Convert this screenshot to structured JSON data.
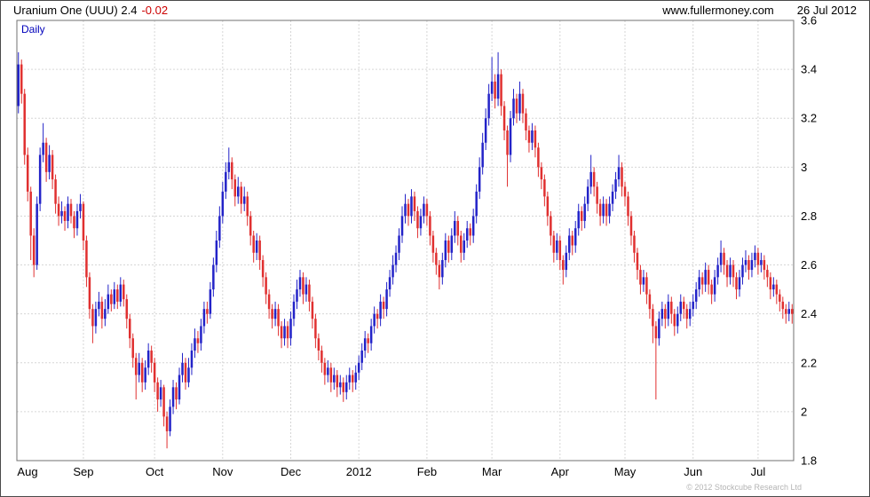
{
  "header": {
    "title": "Uranium One (UUU) 2.4",
    "change": "-0.02",
    "site": "www.fullermoney.com",
    "date": "26 Jul 2012"
  },
  "chart_label": "Daily",
  "footer": {
    "copyright": "© 2012 Stockcube Research Ltd"
  },
  "colors": {
    "up": "#2323c8",
    "down": "#e03030",
    "grid": "#d6d6d6",
    "frame": "#707070",
    "axis_text": "#000000",
    "change_text": "#cc0000",
    "daily_text": "#0000bb"
  },
  "chart_data": {
    "type": "candlestick",
    "title": "Uranium One (UUU) Daily",
    "last_price": 2.4,
    "change": -0.02,
    "ylim": [
      1.8,
      3.6
    ],
    "grid": true,
    "y_ticks": [
      {
        "label": "3.6",
        "v": 3.6
      },
      {
        "label": "3.4",
        "v": 3.4
      },
      {
        "label": "3.2",
        "v": 3.2
      },
      {
        "label": "3",
        "v": 3.0
      },
      {
        "label": "2.8",
        "v": 2.8
      },
      {
        "label": "2.6",
        "v": 2.6
      },
      {
        "label": "2.4",
        "v": 2.4
      },
      {
        "label": "2.2",
        "v": 2.2
      },
      {
        "label": "2",
        "v": 2.0
      },
      {
        "label": "1.8",
        "v": 1.8
      }
    ],
    "x_ticks": [
      {
        "label": "Aug",
        "i": 0
      },
      {
        "label": "Sep",
        "i": 21
      },
      {
        "label": "Oct",
        "i": 44
      },
      {
        "label": "Nov",
        "i": 66
      },
      {
        "label": "Dec",
        "i": 88
      },
      {
        "label": "2012",
        "i": 110
      },
      {
        "label": "Feb",
        "i": 132
      },
      {
        "label": "Mar",
        "i": 153
      },
      {
        "label": "Apr",
        "i": 175
      },
      {
        "label": "May",
        "i": 196
      },
      {
        "label": "Jun",
        "i": 218
      },
      {
        "label": "Jul",
        "i": 239
      }
    ],
    "ohlc": [
      [
        3.25,
        3.47,
        3.22,
        3.42
      ],
      [
        3.42,
        3.44,
        3.26,
        3.3
      ],
      [
        3.3,
        3.32,
        3.01,
        3.05
      ],
      [
        3.05,
        3.08,
        2.86,
        2.9
      ],
      [
        2.9,
        2.92,
        2.62,
        2.72
      ],
      [
        2.72,
        2.75,
        2.55,
        2.6
      ],
      [
        2.6,
        2.88,
        2.58,
        2.85
      ],
      [
        2.85,
        3.08,
        2.82,
        3.05
      ],
      [
        3.05,
        3.18,
        3.02,
        3.1
      ],
      [
        3.1,
        3.12,
        2.94,
        2.98
      ],
      [
        2.98,
        3.09,
        2.95,
        3.05
      ],
      [
        3.05,
        3.07,
        2.91,
        2.95
      ],
      [
        2.95,
        2.97,
        2.81,
        2.85
      ],
      [
        2.85,
        2.88,
        2.76,
        2.8
      ],
      [
        2.8,
        2.86,
        2.77,
        2.82
      ],
      [
        2.82,
        2.84,
        2.74,
        2.78
      ],
      [
        2.78,
        2.88,
        2.75,
        2.85
      ],
      [
        2.85,
        2.87,
        2.77,
        2.8
      ],
      [
        2.8,
        2.82,
        2.71,
        2.75
      ],
      [
        2.75,
        2.85,
        2.72,
        2.82
      ],
      [
        2.82,
        2.89,
        2.79,
        2.85
      ],
      [
        2.85,
        2.86,
        2.66,
        2.7
      ],
      [
        2.7,
        2.72,
        2.51,
        2.55
      ],
      [
        2.55,
        2.57,
        2.38,
        2.42
      ],
      [
        2.42,
        2.44,
        2.28,
        2.35
      ],
      [
        2.35,
        2.45,
        2.32,
        2.42
      ],
      [
        2.42,
        2.49,
        2.39,
        2.45
      ],
      [
        2.45,
        2.47,
        2.34,
        2.38
      ],
      [
        2.38,
        2.46,
        2.35,
        2.42
      ],
      [
        2.42,
        2.52,
        2.4,
        2.48
      ],
      [
        2.48,
        2.5,
        2.41,
        2.44
      ],
      [
        2.44,
        2.53,
        2.42,
        2.5
      ],
      [
        2.5,
        2.52,
        2.42,
        2.45
      ],
      [
        2.45,
        2.55,
        2.43,
        2.52
      ],
      [
        2.52,
        2.54,
        2.43,
        2.46
      ],
      [
        2.46,
        2.48,
        2.34,
        2.38
      ],
      [
        2.38,
        2.4,
        2.26,
        2.3
      ],
      [
        2.3,
        2.32,
        2.18,
        2.22
      ],
      [
        2.22,
        2.24,
        2.05,
        2.15
      ],
      [
        2.15,
        2.24,
        2.12,
        2.2
      ],
      [
        2.2,
        2.22,
        2.08,
        2.12
      ],
      [
        2.12,
        2.21,
        2.09,
        2.18
      ],
      [
        2.18,
        2.28,
        2.15,
        2.25
      ],
      [
        2.25,
        2.27,
        2.16,
        2.2
      ],
      [
        2.2,
        2.22,
        2.08,
        2.12
      ],
      [
        2.12,
        2.14,
        2.0,
        2.05
      ],
      [
        2.05,
        2.13,
        2.02,
        2.1
      ],
      [
        2.1,
        2.11,
        1.94,
        1.98
      ],
      [
        1.98,
        2.0,
        1.85,
        1.92
      ],
      [
        1.92,
        2.05,
        1.9,
        2.02
      ],
      [
        2.02,
        2.13,
        1.99,
        2.1
      ],
      [
        2.1,
        2.12,
        2.01,
        2.05
      ],
      [
        2.05,
        2.18,
        2.03,
        2.15
      ],
      [
        2.15,
        2.24,
        2.12,
        2.2
      ],
      [
        2.2,
        2.22,
        2.09,
        2.12
      ],
      [
        2.12,
        2.22,
        2.1,
        2.18
      ],
      [
        2.18,
        2.28,
        2.15,
        2.25
      ],
      [
        2.25,
        2.34,
        2.22,
        2.3
      ],
      [
        2.3,
        2.33,
        2.24,
        2.28
      ],
      [
        2.28,
        2.38,
        2.25,
        2.35
      ],
      [
        2.35,
        2.45,
        2.32,
        2.42
      ],
      [
        2.42,
        2.45,
        2.36,
        2.4
      ],
      [
        2.4,
        2.53,
        2.38,
        2.5
      ],
      [
        2.5,
        2.63,
        2.47,
        2.6
      ],
      [
        2.6,
        2.74,
        2.57,
        2.7
      ],
      [
        2.7,
        2.84,
        2.67,
        2.8
      ],
      [
        2.8,
        2.94,
        2.77,
        2.9
      ],
      [
        2.9,
        3.02,
        2.87,
        2.98
      ],
      [
        2.98,
        3.08,
        2.95,
        3.02
      ],
      [
        3.02,
        3.04,
        2.91,
        2.95
      ],
      [
        2.95,
        2.97,
        2.84,
        2.88
      ],
      [
        2.88,
        2.96,
        2.85,
        2.92
      ],
      [
        2.92,
        2.94,
        2.81,
        2.85
      ],
      [
        2.85,
        2.92,
        2.82,
        2.88
      ],
      [
        2.88,
        2.9,
        2.76,
        2.8
      ],
      [
        2.8,
        2.82,
        2.68,
        2.72
      ],
      [
        2.72,
        2.74,
        2.61,
        2.65
      ],
      [
        2.65,
        2.73,
        2.62,
        2.7
      ],
      [
        2.7,
        2.72,
        2.58,
        2.62
      ],
      [
        2.62,
        2.64,
        2.51,
        2.55
      ],
      [
        2.55,
        2.57,
        2.44,
        2.48
      ],
      [
        2.48,
        2.5,
        2.38,
        2.42
      ],
      [
        2.42,
        2.44,
        2.34,
        2.38
      ],
      [
        2.38,
        2.45,
        2.35,
        2.42
      ],
      [
        2.42,
        2.44,
        2.31,
        2.35
      ],
      [
        2.35,
        2.37,
        2.26,
        2.3
      ],
      [
        2.3,
        2.38,
        2.27,
        2.35
      ],
      [
        2.35,
        2.37,
        2.26,
        2.3
      ],
      [
        2.3,
        2.41,
        2.27,
        2.38
      ],
      [
        2.38,
        2.48,
        2.35,
        2.45
      ],
      [
        2.45,
        2.54,
        2.42,
        2.5
      ],
      [
        2.5,
        2.58,
        2.47,
        2.55
      ],
      [
        2.55,
        2.57,
        2.44,
        2.48
      ],
      [
        2.48,
        2.55,
        2.45,
        2.52
      ],
      [
        2.52,
        2.54,
        2.41,
        2.45
      ],
      [
        2.45,
        2.47,
        2.34,
        2.38
      ],
      [
        2.38,
        2.4,
        2.26,
        2.3
      ],
      [
        2.3,
        2.32,
        2.21,
        2.25
      ],
      [
        2.25,
        2.27,
        2.16,
        2.2
      ],
      [
        2.2,
        2.22,
        2.11,
        2.15
      ],
      [
        2.15,
        2.21,
        2.12,
        2.18
      ],
      [
        2.18,
        2.2,
        2.08,
        2.12
      ],
      [
        2.12,
        2.18,
        2.09,
        2.15
      ],
      [
        2.15,
        2.17,
        2.06,
        2.1
      ],
      [
        2.1,
        2.15,
        2.07,
        2.12
      ],
      [
        2.12,
        2.14,
        2.04,
        2.08
      ],
      [
        2.08,
        2.15,
        2.05,
        2.12
      ],
      [
        2.12,
        2.18,
        2.09,
        2.15
      ],
      [
        2.15,
        2.17,
        2.08,
        2.12
      ],
      [
        2.12,
        2.19,
        2.09,
        2.16
      ],
      [
        2.16,
        2.23,
        2.13,
        2.2
      ],
      [
        2.2,
        2.28,
        2.17,
        2.25
      ],
      [
        2.25,
        2.33,
        2.22,
        2.3
      ],
      [
        2.3,
        2.32,
        2.24,
        2.28
      ],
      [
        2.28,
        2.38,
        2.25,
        2.35
      ],
      [
        2.35,
        2.43,
        2.32,
        2.4
      ],
      [
        2.4,
        2.42,
        2.34,
        2.38
      ],
      [
        2.38,
        2.48,
        2.35,
        2.45
      ],
      [
        2.45,
        2.47,
        2.38,
        2.42
      ],
      [
        2.42,
        2.53,
        2.39,
        2.5
      ],
      [
        2.5,
        2.58,
        2.47,
        2.55
      ],
      [
        2.55,
        2.64,
        2.52,
        2.6
      ],
      [
        2.6,
        2.68,
        2.57,
        2.65
      ],
      [
        2.65,
        2.75,
        2.62,
        2.72
      ],
      [
        2.72,
        2.84,
        2.69,
        2.8
      ],
      [
        2.8,
        2.89,
        2.77,
        2.85
      ],
      [
        2.85,
        2.87,
        2.76,
        2.8
      ],
      [
        2.8,
        2.91,
        2.77,
        2.88
      ],
      [
        2.88,
        2.9,
        2.78,
        2.82
      ],
      [
        2.82,
        2.84,
        2.71,
        2.75
      ],
      [
        2.75,
        2.83,
        2.72,
        2.8
      ],
      [
        2.8,
        2.88,
        2.77,
        2.85
      ],
      [
        2.85,
        2.87,
        2.76,
        2.8
      ],
      [
        2.8,
        2.82,
        2.68,
        2.72
      ],
      [
        2.72,
        2.74,
        2.61,
        2.65
      ],
      [
        2.65,
        2.67,
        2.56,
        2.6
      ],
      [
        2.6,
        2.62,
        2.5,
        2.55
      ],
      [
        2.55,
        2.65,
        2.52,
        2.62
      ],
      [
        2.62,
        2.73,
        2.59,
        2.7
      ],
      [
        2.7,
        2.72,
        2.61,
        2.65
      ],
      [
        2.65,
        2.75,
        2.62,
        2.72
      ],
      [
        2.72,
        2.82,
        2.69,
        2.78
      ],
      [
        2.78,
        2.8,
        2.68,
        2.72
      ],
      [
        2.72,
        2.74,
        2.61,
        2.65
      ],
      [
        2.65,
        2.73,
        2.62,
        2.7
      ],
      [
        2.7,
        2.78,
        2.67,
        2.75
      ],
      [
        2.75,
        2.77,
        2.68,
        2.72
      ],
      [
        2.72,
        2.83,
        2.69,
        2.8
      ],
      [
        2.8,
        2.93,
        2.77,
        2.9
      ],
      [
        2.9,
        3.04,
        2.87,
        3.0
      ],
      [
        3.0,
        3.14,
        2.97,
        3.1
      ],
      [
        3.1,
        3.24,
        3.07,
        3.2
      ],
      [
        3.2,
        3.34,
        3.17,
        3.3
      ],
      [
        3.3,
        3.45,
        3.27,
        3.35
      ],
      [
        3.35,
        3.38,
        3.24,
        3.28
      ],
      [
        3.28,
        3.47,
        3.25,
        3.38
      ],
      [
        3.38,
        3.4,
        3.21,
        3.25
      ],
      [
        3.25,
        3.27,
        3.11,
        3.15
      ],
      [
        3.15,
        3.17,
        2.92,
        3.05
      ],
      [
        3.05,
        3.23,
        3.02,
        3.2
      ],
      [
        3.2,
        3.32,
        3.17,
        3.28
      ],
      [
        3.28,
        3.3,
        3.18,
        3.22
      ],
      [
        3.22,
        3.35,
        3.19,
        3.3
      ],
      [
        3.3,
        3.32,
        3.18,
        3.22
      ],
      [
        3.22,
        3.24,
        3.11,
        3.15
      ],
      [
        3.15,
        3.17,
        3.06,
        3.1
      ],
      [
        3.1,
        3.18,
        3.07,
        3.15
      ],
      [
        3.15,
        3.17,
        3.04,
        3.08
      ],
      [
        3.08,
        3.1,
        2.96,
        3.0
      ],
      [
        3.0,
        3.02,
        2.91,
        2.95
      ],
      [
        2.95,
        2.97,
        2.84,
        2.88
      ],
      [
        2.88,
        2.9,
        2.76,
        2.8
      ],
      [
        2.8,
        2.82,
        2.68,
        2.72
      ],
      [
        2.72,
        2.74,
        2.61,
        2.65
      ],
      [
        2.65,
        2.73,
        2.62,
        2.7
      ],
      [
        2.7,
        2.72,
        2.58,
        2.62
      ],
      [
        2.62,
        2.64,
        2.52,
        2.58
      ],
      [
        2.58,
        2.68,
        2.55,
        2.65
      ],
      [
        2.65,
        2.75,
        2.62,
        2.72
      ],
      [
        2.72,
        2.74,
        2.64,
        2.68
      ],
      [
        2.68,
        2.78,
        2.65,
        2.75
      ],
      [
        2.75,
        2.85,
        2.72,
        2.82
      ],
      [
        2.82,
        2.84,
        2.74,
        2.78
      ],
      [
        2.78,
        2.88,
        2.75,
        2.85
      ],
      [
        2.85,
        2.95,
        2.82,
        2.92
      ],
      [
        2.92,
        3.05,
        2.89,
        2.98
      ],
      [
        2.98,
        3.0,
        2.88,
        2.92
      ],
      [
        2.92,
        2.94,
        2.81,
        2.85
      ],
      [
        2.85,
        2.87,
        2.76,
        2.8
      ],
      [
        2.8,
        2.88,
        2.77,
        2.85
      ],
      [
        2.85,
        2.87,
        2.76,
        2.8
      ],
      [
        2.8,
        2.88,
        2.77,
        2.85
      ],
      [
        2.85,
        2.93,
        2.82,
        2.9
      ],
      [
        2.9,
        2.98,
        2.87,
        2.95
      ],
      [
        2.95,
        3.05,
        2.92,
        3.0
      ],
      [
        3.0,
        3.02,
        2.88,
        2.92
      ],
      [
        2.92,
        2.94,
        2.84,
        2.88
      ],
      [
        2.88,
        2.9,
        2.76,
        2.8
      ],
      [
        2.8,
        2.82,
        2.68,
        2.72
      ],
      [
        2.72,
        2.74,
        2.61,
        2.65
      ],
      [
        2.65,
        2.67,
        2.54,
        2.58
      ],
      [
        2.58,
        2.6,
        2.48,
        2.52
      ],
      [
        2.52,
        2.58,
        2.49,
        2.55
      ],
      [
        2.55,
        2.57,
        2.44,
        2.48
      ],
      [
        2.48,
        2.5,
        2.38,
        2.42
      ],
      [
        2.42,
        2.44,
        2.28,
        2.35
      ],
      [
        2.35,
        2.37,
        2.05,
        2.3
      ],
      [
        2.3,
        2.41,
        2.27,
        2.38
      ],
      [
        2.38,
        2.45,
        2.35,
        2.42
      ],
      [
        2.42,
        2.44,
        2.34,
        2.38
      ],
      [
        2.38,
        2.48,
        2.35,
        2.45
      ],
      [
        2.45,
        2.47,
        2.36,
        2.4
      ],
      [
        2.4,
        2.42,
        2.31,
        2.35
      ],
      [
        2.35,
        2.43,
        2.32,
        2.4
      ],
      [
        2.4,
        2.48,
        2.37,
        2.45
      ],
      [
        2.45,
        2.47,
        2.38,
        2.42
      ],
      [
        2.42,
        2.44,
        2.34,
        2.38
      ],
      [
        2.38,
        2.45,
        2.35,
        2.42
      ],
      [
        2.42,
        2.48,
        2.39,
        2.45
      ],
      [
        2.45,
        2.53,
        2.42,
        2.5
      ],
      [
        2.5,
        2.58,
        2.47,
        2.55
      ],
      [
        2.55,
        2.57,
        2.48,
        2.52
      ],
      [
        2.52,
        2.61,
        2.49,
        2.58
      ],
      [
        2.58,
        2.6,
        2.48,
        2.52
      ],
      [
        2.52,
        2.54,
        2.44,
        2.48
      ],
      [
        2.48,
        2.58,
        2.45,
        2.55
      ],
      [
        2.55,
        2.63,
        2.52,
        2.6
      ],
      [
        2.6,
        2.7,
        2.57,
        2.65
      ],
      [
        2.65,
        2.67,
        2.56,
        2.6
      ],
      [
        2.6,
        2.62,
        2.51,
        2.55
      ],
      [
        2.55,
        2.63,
        2.52,
        2.6
      ],
      [
        2.6,
        2.62,
        2.51,
        2.55
      ],
      [
        2.55,
        2.57,
        2.46,
        2.5
      ],
      [
        2.5,
        2.58,
        2.47,
        2.55
      ],
      [
        2.55,
        2.63,
        2.52,
        2.6
      ],
      [
        2.6,
        2.66,
        2.57,
        2.62
      ],
      [
        2.62,
        2.64,
        2.54,
        2.58
      ],
      [
        2.58,
        2.65,
        2.55,
        2.62
      ],
      [
        2.62,
        2.68,
        2.59,
        2.65
      ],
      [
        2.65,
        2.67,
        2.56,
        2.6
      ],
      [
        2.6,
        2.65,
        2.57,
        2.62
      ],
      [
        2.62,
        2.64,
        2.54,
        2.58
      ],
      [
        2.58,
        2.6,
        2.51,
        2.55
      ],
      [
        2.55,
        2.57,
        2.46,
        2.5
      ],
      [
        2.5,
        2.55,
        2.47,
        2.52
      ],
      [
        2.52,
        2.54,
        2.44,
        2.48
      ],
      [
        2.48,
        2.5,
        2.41,
        2.45
      ],
      [
        2.45,
        2.47,
        2.38,
        2.42
      ],
      [
        2.42,
        2.44,
        2.36,
        2.4
      ],
      [
        2.4,
        2.45,
        2.37,
        2.42
      ],
      [
        2.42,
        2.44,
        2.36,
        2.4
      ]
    ]
  }
}
